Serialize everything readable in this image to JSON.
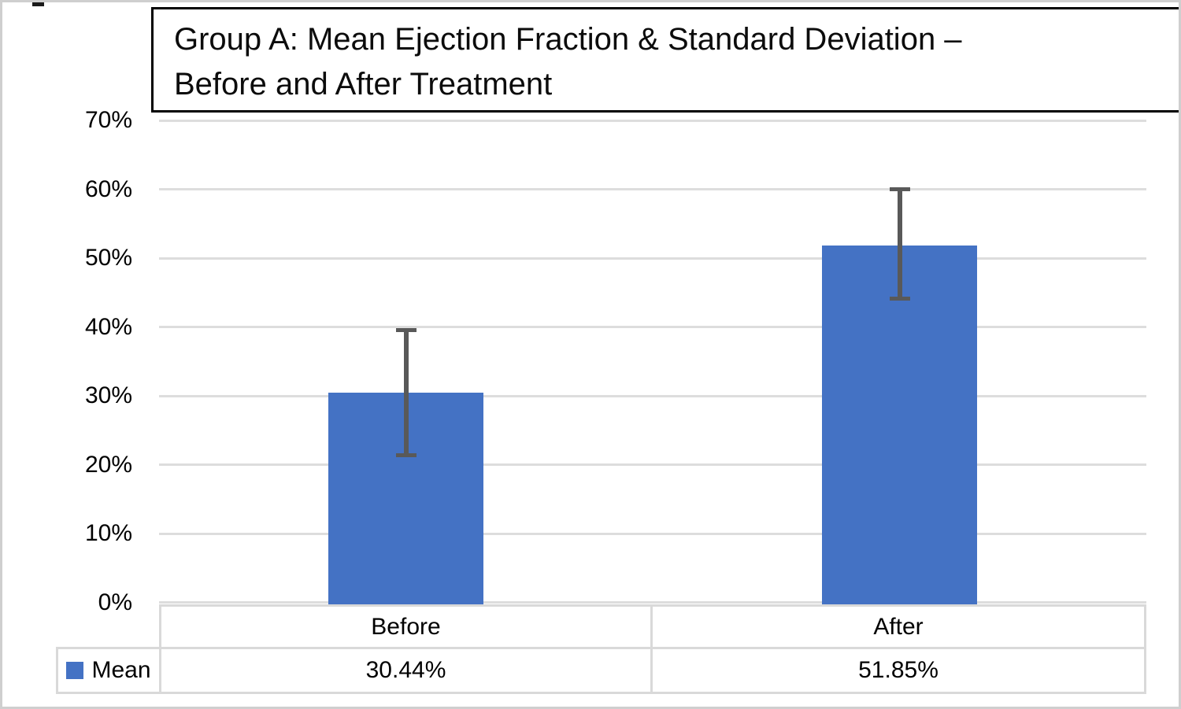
{
  "figure": {
    "title_lines": [
      "Group A: Mean Ejection Fraction & Standard Deviation –",
      "Before and After Treatment"
    ]
  },
  "chart_data": {
    "type": "bar",
    "title": "Group A: Mean Ejection Fraction & Standard Deviation – Before and After Treatment",
    "xlabel": "",
    "ylabel": "",
    "categories": [
      "Before",
      "After"
    ],
    "series": [
      {
        "name": "Mean",
        "values": [
          30.44,
          51.85
        ],
        "display_values": [
          "30.44%",
          "51.85%"
        ]
      }
    ],
    "error_bars": {
      "low": [
        21.4,
        44.1
      ],
      "high": [
        39.5,
        60.0
      ]
    },
    "ylim": [
      0,
      70
    ],
    "y_ticks": [
      {
        "value": 70,
        "label": "70%"
      },
      {
        "value": 60,
        "label": "60%"
      },
      {
        "value": 50,
        "label": "50%"
      },
      {
        "value": 40,
        "label": "40%"
      },
      {
        "value": 30,
        "label": "30%"
      },
      {
        "value": 20,
        "label": "20%"
      },
      {
        "value": 10,
        "label": "10%"
      },
      {
        "value": 0,
        "label": "0%"
      }
    ],
    "grid": true,
    "legend_position": "bottom-table-left",
    "colors": {
      "bar": "#4472C4",
      "error_bar": "#595959",
      "gridline": "#dddddd",
      "table_border": "#d9d9d9",
      "title_border": "#000000",
      "outer_border": "#cfcfcf",
      "text": "#000000"
    }
  }
}
